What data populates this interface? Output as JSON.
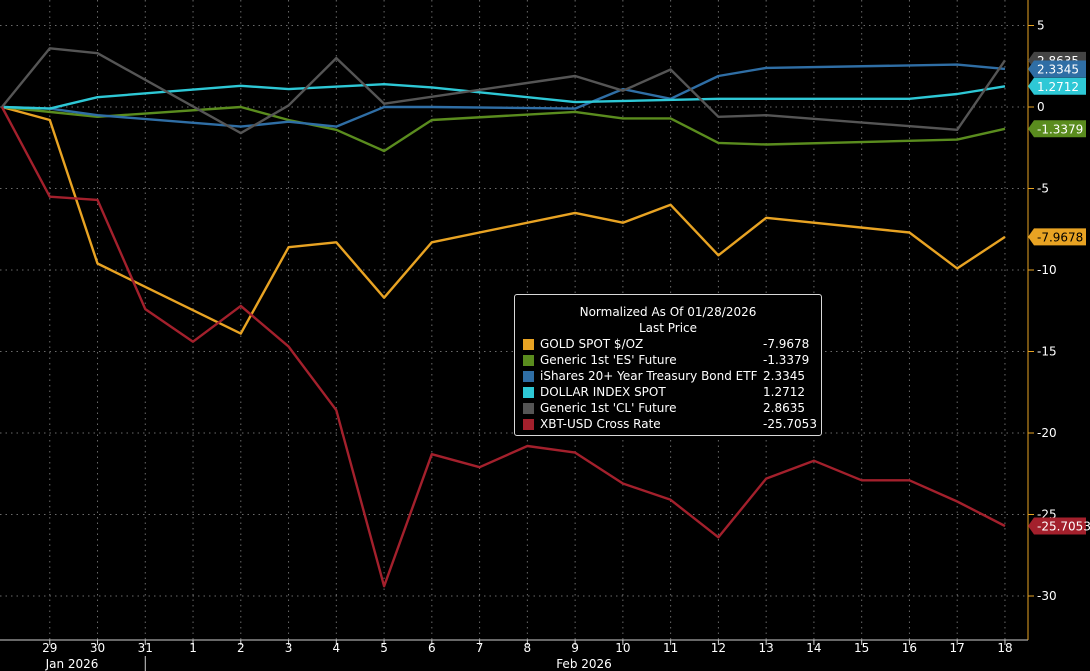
{
  "chart_data": {
    "type": "line",
    "title": "Normalized As Of 01/28/2026",
    "subtitle": "Last Price",
    "x_labels": [
      "29",
      "30",
      "31",
      "1",
      "2",
      "3",
      "4",
      "5",
      "6",
      "7",
      "8",
      "9",
      "10",
      "11",
      "12",
      "13",
      "14",
      "15",
      "16",
      "17",
      "18"
    ],
    "month_labels": [
      "Jan 2026",
      "Feb 2026"
    ],
    "x_dates": [
      "2026-01-28",
      "2026-01-29",
      "2026-01-30",
      "2026-01-31",
      "2026-02-01",
      "2026-02-02",
      "2026-02-03",
      "2026-02-04",
      "2026-02-05",
      "2026-02-06",
      "2026-02-07",
      "2026-02-08",
      "2026-02-09",
      "2026-02-10",
      "2026-02-11",
      "2026-02-12",
      "2026-02-13",
      "2026-02-14",
      "2026-02-15",
      "2026-02-16",
      "2026-02-17",
      "2026-02-18"
    ],
    "y_ticks": [
      5,
      0,
      -5,
      -10,
      -15,
      -20,
      -25,
      -30
    ],
    "ylim": [
      -32,
      5.5
    ],
    "grid": true,
    "legend_position": "center-right",
    "series": [
      {
        "name": "GOLD SPOT $/OZ",
        "last_label": "-7.9678",
        "color": "#e8a323",
        "points": [
          [
            "2026-01-28",
            0
          ],
          [
            "2026-01-29",
            -0.8
          ],
          [
            "2026-01-30",
            -9.6
          ],
          [
            "2026-02-02",
            -13.9
          ],
          [
            "2026-02-03",
            -8.6
          ],
          [
            "2026-02-04",
            -8.3
          ],
          [
            "2026-02-05",
            -11.7
          ],
          [
            "2026-02-06",
            -8.3
          ],
          [
            "2026-02-09",
            -6.5
          ],
          [
            "2026-02-10",
            -7.1
          ],
          [
            "2026-02-11",
            -6.0
          ],
          [
            "2026-02-12",
            -9.1
          ],
          [
            "2026-02-13",
            -6.8
          ],
          [
            "2026-02-16",
            -7.7
          ],
          [
            "2026-02-17",
            -9.9
          ],
          [
            "2026-02-18",
            -7.9678
          ]
        ]
      },
      {
        "name": "Generic 1st 'ES' Future",
        "last_label": "-1.3379",
        "color": "#5a8c1e",
        "points": [
          [
            "2026-01-28",
            0
          ],
          [
            "2026-01-30",
            -0.6
          ],
          [
            "2026-02-02",
            0
          ],
          [
            "2026-02-03",
            -0.8
          ],
          [
            "2026-02-04",
            -1.4
          ],
          [
            "2026-02-05",
            -2.7
          ],
          [
            "2026-02-06",
            -0.8
          ],
          [
            "2026-02-09",
            -0.3
          ],
          [
            "2026-02-10",
            -0.7
          ],
          [
            "2026-02-11",
            -0.7
          ],
          [
            "2026-02-12",
            -2.2
          ],
          [
            "2026-02-13",
            -2.3
          ],
          [
            "2026-02-17",
            -2.0
          ],
          [
            "2026-02-18",
            -1.3379
          ]
        ]
      },
      {
        "name": "iShares 20+ Year Treasury Bond ETF",
        "last_label": "2.3345",
        "color": "#2f6ea5",
        "points": [
          [
            "2026-01-28",
            0
          ],
          [
            "2026-01-29",
            -0.1
          ],
          [
            "2026-01-30",
            -0.5
          ],
          [
            "2026-02-02",
            -1.2
          ],
          [
            "2026-02-03",
            -0.9
          ],
          [
            "2026-02-04",
            -1.2
          ],
          [
            "2026-02-05",
            0
          ],
          [
            "2026-02-06",
            0
          ],
          [
            "2026-02-09",
            -0.1
          ],
          [
            "2026-02-10",
            1.1
          ],
          [
            "2026-02-11",
            0.5
          ],
          [
            "2026-02-12",
            1.9
          ],
          [
            "2026-02-13",
            2.4
          ],
          [
            "2026-02-17",
            2.6
          ],
          [
            "2026-02-18",
            2.3345
          ]
        ]
      },
      {
        "name": "DOLLAR INDEX SPOT",
        "last_label": "1.2712",
        "color": "#2ec8d6",
        "points": [
          [
            "2026-01-28",
            0
          ],
          [
            "2026-01-29",
            -0.1
          ],
          [
            "2026-01-30",
            0.6
          ],
          [
            "2026-02-02",
            1.3
          ],
          [
            "2026-02-03",
            1.1
          ],
          [
            "2026-02-05",
            1.4
          ],
          [
            "2026-02-06",
            1.2
          ],
          [
            "2026-02-09",
            0.3
          ],
          [
            "2026-02-12",
            0.5
          ],
          [
            "2026-02-16",
            0.5
          ],
          [
            "2026-02-17",
            0.8
          ],
          [
            "2026-02-18",
            1.2712
          ]
        ]
      },
      {
        "name": "Generic 1st 'CL' Future",
        "last_label": "2.8635",
        "color": "#555555",
        "points": [
          [
            "2026-01-28",
            0
          ],
          [
            "2026-01-29",
            3.6
          ],
          [
            "2026-01-30",
            3.3
          ],
          [
            "2026-02-02",
            -1.6
          ],
          [
            "2026-02-03",
            0.1
          ],
          [
            "2026-02-04",
            3.0
          ],
          [
            "2026-02-05",
            0.2
          ],
          [
            "2026-02-09",
            1.9
          ],
          [
            "2026-02-10",
            1.0
          ],
          [
            "2026-02-11",
            2.3
          ],
          [
            "2026-02-12",
            -0.6
          ],
          [
            "2026-02-13",
            -0.5
          ],
          [
            "2026-02-17",
            -1.4
          ],
          [
            "2026-02-18",
            2.8635
          ]
        ]
      },
      {
        "name": "XBT-USD Cross Rate",
        "last_label": "-25.7053",
        "color": "#a3202c",
        "points": [
          [
            "2026-01-28",
            0
          ],
          [
            "2026-01-29",
            -5.5
          ],
          [
            "2026-01-30",
            -5.7
          ],
          [
            "2026-01-31",
            -12.4
          ],
          [
            "2026-02-01",
            -14.4
          ],
          [
            "2026-02-02",
            -12.2
          ],
          [
            "2026-02-03",
            -14.7
          ],
          [
            "2026-02-04",
            -18.6
          ],
          [
            "2026-02-05",
            -29.4
          ],
          [
            "2026-02-06",
            -21.3
          ],
          [
            "2026-02-07",
            -22.1
          ],
          [
            "2026-02-08",
            -20.8
          ],
          [
            "2026-02-09",
            -21.2
          ],
          [
            "2026-02-10",
            -23.1
          ],
          [
            "2026-02-11",
            -24.1
          ],
          [
            "2026-02-12",
            -26.4
          ],
          [
            "2026-02-13",
            -22.8
          ],
          [
            "2026-02-14",
            -21.7
          ],
          [
            "2026-02-15",
            -22.9
          ],
          [
            "2026-02-16",
            -22.9
          ],
          [
            "2026-02-17",
            -24.2
          ],
          [
            "2026-02-18",
            -25.7053
          ]
        ]
      }
    ],
    "end_tags": [
      {
        "value": 2.8635,
        "label": "2.8635",
        "bg": "#444444",
        "fg": "#ffffff"
      },
      {
        "value": 2.3345,
        "label": "2.3345",
        "bg": "#2f6ea5",
        "fg": "#ffffff"
      },
      {
        "value": 1.2712,
        "label": "1.2712",
        "bg": "#2ec8d6",
        "fg": "#ffffff"
      },
      {
        "value": -1.3379,
        "label": "-1.3379",
        "bg": "#5a8c1e",
        "fg": "#ffffff"
      },
      {
        "value": -7.9678,
        "label": "-7.9678",
        "bg": "#e8a323",
        "fg": "#000000"
      },
      {
        "value": -25.7053,
        "label": "-25.7053",
        "bg": "#a3202c",
        "fg": "#ffffff"
      }
    ]
  }
}
